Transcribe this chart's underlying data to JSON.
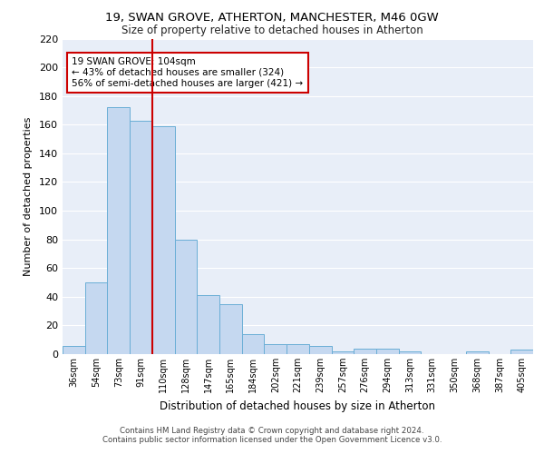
{
  "title1": "19, SWAN GROVE, ATHERTON, MANCHESTER, M46 0GW",
  "title2": "Size of property relative to detached houses in Atherton",
  "xlabel": "Distribution of detached houses by size in Atherton",
  "ylabel": "Number of detached properties",
  "categories": [
    "36sqm",
    "54sqm",
    "73sqm",
    "91sqm",
    "110sqm",
    "128sqm",
    "147sqm",
    "165sqm",
    "184sqm",
    "202sqm",
    "221sqm",
    "239sqm",
    "257sqm",
    "276sqm",
    "294sqm",
    "313sqm",
    "331sqm",
    "350sqm",
    "368sqm",
    "387sqm",
    "405sqm"
  ],
  "values": [
    6,
    50,
    172,
    163,
    159,
    80,
    41,
    35,
    14,
    7,
    7,
    6,
    2,
    4,
    4,
    2,
    0,
    0,
    2,
    0,
    3
  ],
  "bar_color": "#c5d8f0",
  "bar_edge_color": "#6aaed6",
  "bg_color": "#e8eef8",
  "grid_color": "#ffffff",
  "vline_index": 4,
  "vline_color": "#cc0000",
  "annotation_text": "19 SWAN GROVE: 104sqm\n← 43% of detached houses are smaller (324)\n56% of semi-detached houses are larger (421) →",
  "annotation_box_color": "#cc0000",
  "ylim": [
    0,
    220
  ],
  "yticks": [
    0,
    20,
    40,
    60,
    80,
    100,
    120,
    140,
    160,
    180,
    200,
    220
  ],
  "footer1": "Contains HM Land Registry data © Crown copyright and database right 2024.",
  "footer2": "Contains public sector information licensed under the Open Government Licence v3.0."
}
